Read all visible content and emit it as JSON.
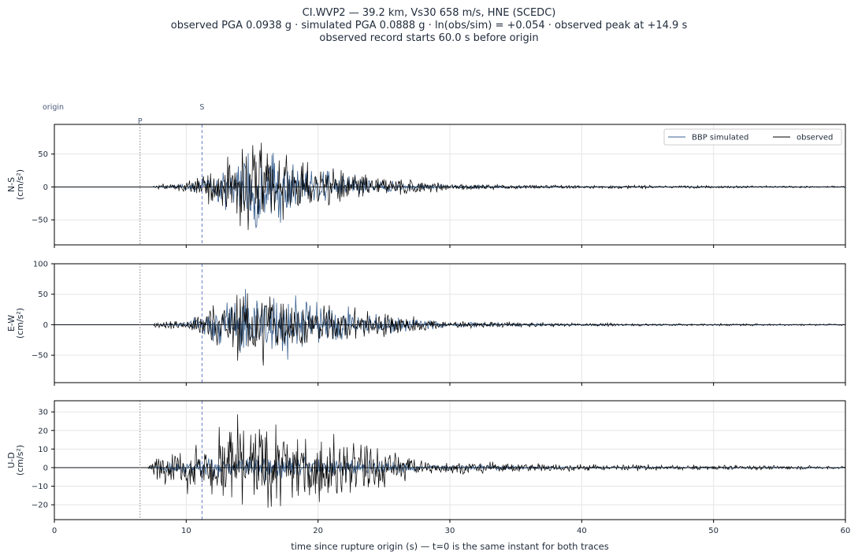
{
  "title": {
    "line1": "CI.WVP2  —  39.2 km, Vs30 658 m/s, HNE (SCEDC)",
    "line2": "observed PGA 0.0938 g   ·   simulated PGA 0.0888 g   ·   ln(obs/sim) = +0.054   ·   observed peak at +14.9 s",
    "line3": "observed record starts 60.0 s before origin"
  },
  "colors": {
    "simulated": "#3a6190",
    "observed": "#000000",
    "p_marker": "#808080",
    "s_marker": "#6a7fc8",
    "grid": "#e5e5e5"
  },
  "chart_data": {
    "type": "line",
    "xlabel": "time since rupture origin (s)   —   t=0 is the same instant for both traces",
    "xlim": [
      0,
      60
    ],
    "xticks": [
      0,
      10,
      20,
      30,
      40,
      50,
      60
    ],
    "grid": true,
    "legend": {
      "placement": "top-right",
      "entries": [
        "BBP simulated",
        "observed"
      ]
    },
    "markers": [
      {
        "label": "origin",
        "t": 0
      },
      {
        "label": "P",
        "t": 6.5,
        "style": "dotted"
      },
      {
        "label": "S",
        "t": 11.2,
        "style": "dashed"
      }
    ],
    "panels": [
      {
        "component": "N-S",
        "ylabel": "N-S\n(cm/s²)",
        "ylim": [
          -88,
          95
        ],
        "yticks": [
          -50,
          0,
          50
        ],
        "envelope": [
          {
            "t": 7.5,
            "obs": 4,
            "sim": 0
          },
          {
            "t": 10,
            "obs": 8,
            "sim": 5
          },
          {
            "t": 12.5,
            "obs": 35,
            "sim": 25
          },
          {
            "t": 14,
            "obs": 60,
            "sim": 55
          },
          {
            "t": 15,
            "obs": 78,
            "sim": 88
          },
          {
            "t": 16.5,
            "obs": 55,
            "sim": 60
          },
          {
            "t": 20,
            "obs": 35,
            "sim": 30
          },
          {
            "t": 25,
            "obs": 18,
            "sim": 10
          },
          {
            "t": 30,
            "obs": 6,
            "sim": 3
          },
          {
            "t": 40,
            "obs": 3,
            "sim": 1
          },
          {
            "t": 60,
            "obs": 1.5,
            "sim": 0.5
          }
        ]
      },
      {
        "component": "E-W",
        "ylabel": "E-W\n(cm/s²)",
        "ylim": [
          -95,
          100
        ],
        "yticks": [
          -50,
          0,
          50,
          100
        ],
        "envelope": [
          {
            "t": 7.5,
            "obs": 5,
            "sim": 0
          },
          {
            "t": 10,
            "obs": 10,
            "sim": 5
          },
          {
            "t": 12.5,
            "obs": 45,
            "sim": 40
          },
          {
            "t": 14,
            "obs": 60,
            "sim": 55
          },
          {
            "t": 15,
            "obs": 92,
            "sim": 62
          },
          {
            "t": 17.5,
            "obs": 45,
            "sim": 65
          },
          {
            "t": 20,
            "obs": 38,
            "sim": 40
          },
          {
            "t": 25,
            "obs": 22,
            "sim": 18
          },
          {
            "t": 30,
            "obs": 6,
            "sim": 5
          },
          {
            "t": 40,
            "obs": 3,
            "sim": 1
          },
          {
            "t": 60,
            "obs": 1.5,
            "sim": 0.5
          }
        ]
      },
      {
        "component": "U-D",
        "ylabel": "U-D\n(cm/s²)",
        "ylim": [
          -28,
          36
        ],
        "yticks": [
          -20,
          -10,
          0,
          10,
          20,
          30
        ],
        "envelope": [
          {
            "t": 7.0,
            "obs": 1,
            "sim": 0
          },
          {
            "t": 8,
            "obs": 8,
            "sim": 2
          },
          {
            "t": 10,
            "obs": 14,
            "sim": 4
          },
          {
            "t": 13.5,
            "obs": 30,
            "sim": 6
          },
          {
            "t": 15,
            "obs": 25,
            "sim": 8
          },
          {
            "t": 20,
            "obs": 20,
            "sim": 6
          },
          {
            "t": 25,
            "obs": 14,
            "sim": 4
          },
          {
            "t": 28,
            "obs": 4,
            "sim": 2
          },
          {
            "t": 40,
            "obs": 2,
            "sim": 0.5
          },
          {
            "t": 60,
            "obs": 1,
            "sim": 0.3
          }
        ]
      }
    ]
  }
}
